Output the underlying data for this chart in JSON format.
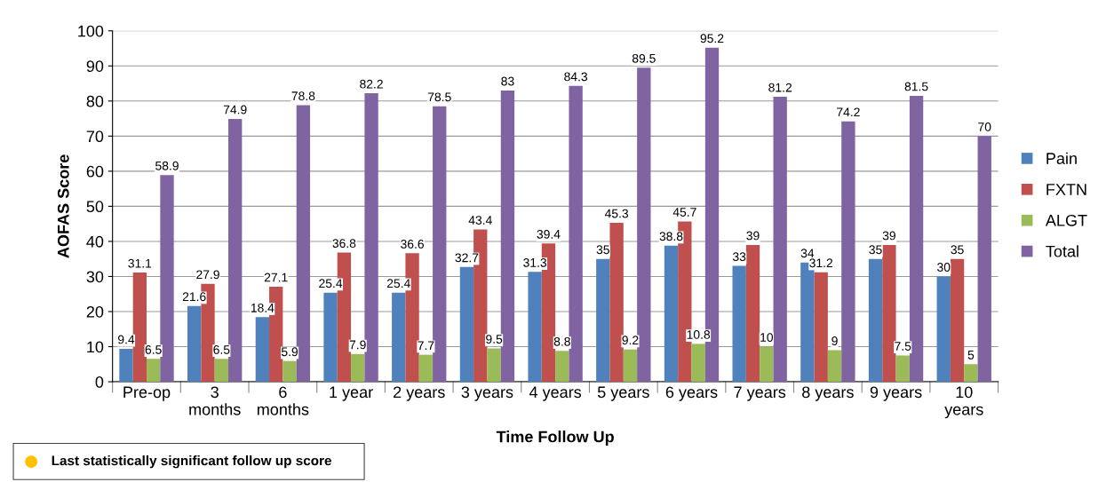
{
  "chart_data": {
    "type": "bar",
    "xlabel": "Time Follow Up",
    "ylabel": "AOFAS Score",
    "categories": [
      "Pre-op",
      "3 months",
      "6 months",
      "1 year",
      "2 years",
      "3 years",
      "4 years",
      "5 years",
      "6 years",
      "7 years",
      "8 years",
      "9 years",
      "10 years"
    ],
    "series": [
      {
        "name": "Pain",
        "color": "#4f81bd",
        "values": [
          9.4,
          21.6,
          18.4,
          25.4,
          25.4,
          32.7,
          31.3,
          35,
          38.8,
          33,
          34,
          35,
          30
        ]
      },
      {
        "name": "FXTN",
        "color": "#c0504d",
        "values": [
          31.1,
          27.9,
          27.1,
          36.8,
          36.6,
          43.4,
          39.4,
          45.3,
          45.7,
          39,
          31.2,
          39,
          35
        ]
      },
      {
        "name": "ALGT",
        "color": "#9bbb59",
        "values": [
          6.5,
          6.5,
          5.9,
          7.9,
          7.7,
          9.5,
          8.8,
          9.2,
          10.8,
          10,
          9,
          7.5,
          5
        ]
      },
      {
        "name": "Total",
        "color": "#8064a2",
        "values": [
          58.9,
          74.9,
          78.8,
          82.2,
          78.5,
          83,
          84.3,
          89.5,
          95.2,
          81.2,
          74.2,
          81.5,
          70
        ]
      }
    ],
    "ylim": [
      0,
      100
    ],
    "yticks": [
      0,
      10,
      20,
      30,
      40,
      50,
      60,
      70,
      80,
      90,
      100
    ],
    "grid": "y",
    "legend": "right",
    "data_labels": true,
    "annotations": [
      "Last statistically significant follow up score"
    ]
  }
}
